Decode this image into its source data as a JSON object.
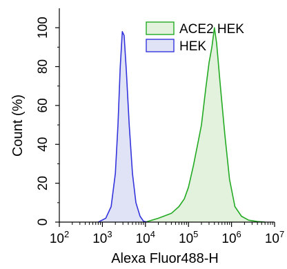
{
  "chart_data": {
    "type": "area",
    "title": "",
    "xlabel": "Alexa Fluor488-H",
    "ylabel": "Count (%)",
    "xscale": "log",
    "xlim": [
      100,
      10000000
    ],
    "ylim": [
      0,
      110
    ],
    "grid": false,
    "legend": {
      "placement": "top-right",
      "entries": [
        "ACE2 HEK",
        "HEK"
      ]
    },
    "x_ticks": [
      {
        "base": "10",
        "exp": "2",
        "value": 100
      },
      {
        "base": "10",
        "exp": "3",
        "value": 1000
      },
      {
        "base": "10",
        "exp": "4",
        "value": 10000
      },
      {
        "base": "10",
        "exp": "5",
        "value": 100000
      },
      {
        "base": "10",
        "exp": "6",
        "value": 1000000
      },
      {
        "base": "10",
        "exp": "7",
        "value": 10000000
      }
    ],
    "y_ticks": [
      "0",
      "20",
      "40",
      "60",
      "80",
      "100"
    ],
    "series": [
      {
        "name": "ACE2 HEK",
        "stroke": "#22aa22",
        "fill": "#e3f2dd",
        "points": [
          [
            10000,
            0
          ],
          [
            20000,
            2
          ],
          [
            40000,
            4.5
          ],
          [
            60000,
            8
          ],
          [
            80000,
            12
          ],
          [
            100000,
            18
          ],
          [
            130000,
            29
          ],
          [
            170000,
            42
          ],
          [
            200000,
            50
          ],
          [
            250000,
            68
          ],
          [
            300000,
            82
          ],
          [
            350000,
            90
          ],
          [
            400000,
            100
          ],
          [
            450000,
            92
          ],
          [
            550000,
            70
          ],
          [
            700000,
            45
          ],
          [
            900000,
            22
          ],
          [
            1200000,
            8
          ],
          [
            1700000,
            3
          ],
          [
            2500000,
            1
          ],
          [
            4000000,
            0.3
          ],
          [
            6000000,
            0
          ]
        ]
      },
      {
        "name": "HEK",
        "stroke": "#3333dd",
        "fill": "#e0e2f6",
        "points": [
          [
            800,
            0
          ],
          [
            1200,
            2
          ],
          [
            1600,
            8
          ],
          [
            2000,
            25
          ],
          [
            2300,
            50
          ],
          [
            2600,
            80
          ],
          [
            2900,
            98
          ],
          [
            3200,
            96
          ],
          [
            3600,
            78
          ],
          [
            4200,
            50
          ],
          [
            5000,
            25
          ],
          [
            6000,
            10
          ],
          [
            7500,
            3
          ],
          [
            9000,
            0.5
          ],
          [
            11000,
            0
          ]
        ]
      }
    ]
  }
}
